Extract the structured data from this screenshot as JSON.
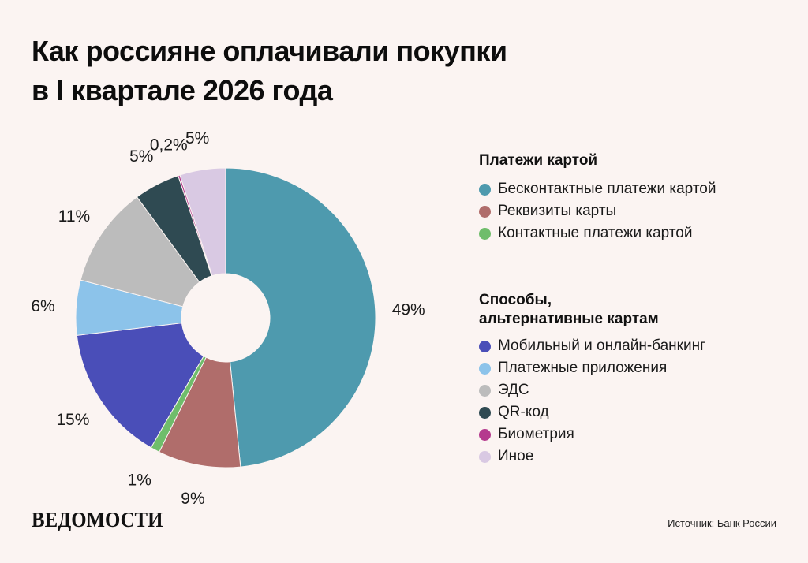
{
  "title": {
    "line1": "Как россияне оплачивали покупки",
    "line2": "в I квартале 2026 года"
  },
  "legend": {
    "group1": {
      "heading": "Платежи картой",
      "items": [
        {
          "label": "Бесконтактные платежи картой",
          "color": "#4e9aae"
        },
        {
          "label": "Реквизиты карты",
          "color": "#b06d6b"
        },
        {
          "label": "Контактные платежи картой",
          "color": "#6fbd6b"
        }
      ]
    },
    "group2": {
      "heading_line1": "Способы,",
      "heading_line2": "альтернативные картам",
      "items": [
        {
          "label": "Мобильный и онлайн-банкинг",
          "color": "#4a4eb8"
        },
        {
          "label": "Платежные приложения",
          "color": "#8cc3ea"
        },
        {
          "label": "ЭДС",
          "color": "#bcbcbc"
        },
        {
          "label": "QR-код",
          "color": "#2f4a52"
        },
        {
          "label": "Биометрия",
          "color": "#b53a8e"
        },
        {
          "label": "Иное",
          "color": "#d9c9e3"
        }
      ]
    }
  },
  "chart_data": {
    "type": "pie",
    "variant": "donut",
    "slices": [
      {
        "name": "Бесконтактные платежи картой",
        "value": 49,
        "label": "49%",
        "color": "#4e9aae"
      },
      {
        "name": "Реквизиты карты",
        "value": 9,
        "label": "9%",
        "color": "#b06d6b"
      },
      {
        "name": "Контактные платежи картой",
        "value": 1,
        "label": "1%",
        "color": "#6fbd6b"
      },
      {
        "name": "Мобильный и онлайн-банкинг",
        "value": 15,
        "label": "15%",
        "color": "#4a4eb8"
      },
      {
        "name": "Платежные приложения",
        "value": 6,
        "label": "6%",
        "color": "#8cc3ea"
      },
      {
        "name": "ЭДС",
        "value": 11,
        "label": "11%",
        "color": "#bcbcbc"
      },
      {
        "name": "QR-код",
        "value": 5,
        "label": "5%",
        "color": "#2f4a52"
      },
      {
        "name": "Биометрия",
        "value": 0.2,
        "label": "0,2%",
        "color": "#b53a8e"
      },
      {
        "name": "Иное",
        "value": 5,
        "label": "5%",
        "color": "#d9c9e3"
      }
    ]
  },
  "footer": {
    "logo": "ВЕДОМОСТИ",
    "source": "Источник: Банк России"
  }
}
